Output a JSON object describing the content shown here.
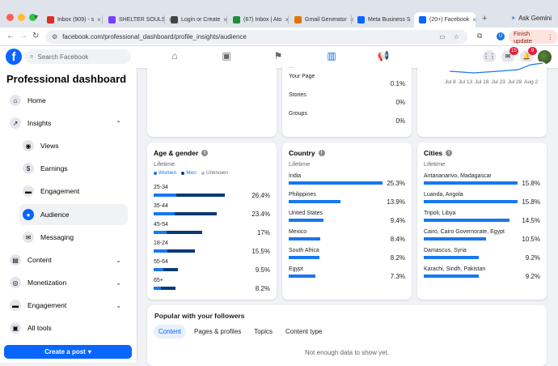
{
  "browser": {
    "tabs": [
      {
        "label": "Inbox (909) - s",
        "fav_color": "#d93025"
      },
      {
        "label": "SHELTER SOULS",
        "fav_color": "#7a3cff"
      },
      {
        "label": "Login or Create",
        "fav_color": "#444444"
      },
      {
        "label": "(67) Inbox | Ato",
        "fav_color": "#1d8f3a"
      },
      {
        "label": "Gmail Generator",
        "fav_color": "#e37400"
      },
      {
        "label": "Meta Business S",
        "fav_color": "#0866ff"
      },
      {
        "label": "(20+) Facebook",
        "fav_color": "#0866ff"
      }
    ],
    "gemini_label": "Ask Gemini",
    "url": "facebook.com/professional_dashboard/profile_insights/audience",
    "profile_initial": "U",
    "finish_update_label": "Finish update"
  },
  "header": {
    "search_placeholder": "Search Facebook",
    "messenger_badge": "15",
    "notifications_badge": "9"
  },
  "sidebar": {
    "title": "Professional dashboard",
    "items": [
      {
        "label": "Home",
        "icon": "⌂"
      },
      {
        "label": "Insights",
        "icon": "↗"
      },
      {
        "label": "Views",
        "icon": "◉"
      },
      {
        "label": "Earnings",
        "icon": "$"
      },
      {
        "label": "Engagement",
        "icon": "▬"
      },
      {
        "label": "Audience",
        "icon": "●"
      },
      {
        "label": "Messaging",
        "icon": "✉"
      },
      {
        "label": "Content",
        "icon": "▤"
      },
      {
        "label": "Monetization",
        "icon": "◎"
      },
      {
        "label": "Engagement",
        "icon": "▬"
      },
      {
        "label": "All tools",
        "icon": "▣"
      }
    ],
    "create_post_label": "Create a post"
  },
  "top_card": {
    "partial_value": "...",
    "rows": [
      {
        "label": "Your Page",
        "pct": "0.1%"
      },
      {
        "label": "Stories",
        "pct": "0%"
      },
      {
        "label": "Groups",
        "pct": "0%"
      }
    ]
  },
  "trend_card": {
    "x_labels": [
      "Jul 8",
      "Jul 13",
      "Jul 18",
      "Jul 23",
      "Jul 28",
      "Aug 2"
    ]
  },
  "age_gender": {
    "title": "Age & gender",
    "subtitle": "Lifetime",
    "legend": [
      "Women",
      "Men",
      "Unknown"
    ],
    "legend_colors": [
      "#1877f2",
      "#0a3a75",
      "#bcc0c4"
    ],
    "rows": [
      {
        "label": "25-34",
        "pct": "26.4%",
        "women": 0.24,
        "men": 0.76
      },
      {
        "label": "35-44",
        "pct": "23.4%",
        "women": 0.22,
        "men": 0.67
      },
      {
        "label": "45-54",
        "pct": "17%",
        "women": 0.14,
        "men": 0.52
      },
      {
        "label": "18-24",
        "pct": "15.5%",
        "women": 0.15,
        "men": 0.44
      },
      {
        "label": "55-64",
        "pct": "9.5%",
        "women": 0.1,
        "men": 0.26
      },
      {
        "label": "65+",
        "pct": "8.2%",
        "women": 0.08,
        "men": 0.23
      }
    ]
  },
  "country": {
    "title": "Country",
    "subtitle": "Lifetime",
    "rows": [
      {
        "label": "India",
        "pct": "25.3%",
        "value": 25.3
      },
      {
        "label": "Philippines",
        "pct": "13.9%",
        "value": 13.9
      },
      {
        "label": "United States",
        "pct": "9.4%",
        "value": 9.4
      },
      {
        "label": "Mexico",
        "pct": "8.4%",
        "value": 8.4
      },
      {
        "label": "South Africa",
        "pct": "8.2%",
        "value": 8.2
      },
      {
        "label": "Egypt",
        "pct": "7.3%",
        "value": 7.3
      }
    ]
  },
  "cities": {
    "title": "Cities",
    "subtitle": "Lifetime",
    "rows": [
      {
        "label": "Antananarivo, Madagascar",
        "pct": "15.8%",
        "value": 15.8
      },
      {
        "label": "Luanda, Angola",
        "pct": "15.8%",
        "value": 15.8
      },
      {
        "label": "Tripoli, Libya",
        "pct": "14.5%",
        "value": 14.5
      },
      {
        "label": "Cairo, Cairo Governorate, Egypt",
        "pct": "10.5%",
        "value": 10.5
      },
      {
        "label": "Damascus, Syria",
        "pct": "9.2%",
        "value": 9.2
      },
      {
        "label": "Karachi, Sindh, Pakistan",
        "pct": "9.2%",
        "value": 9.2
      }
    ]
  },
  "popular": {
    "title": "Popular with your followers",
    "tabs": [
      "Content",
      "Pages & profiles",
      "Topics",
      "Content type"
    ],
    "empty_text": "Not enough data to show yet."
  }
}
